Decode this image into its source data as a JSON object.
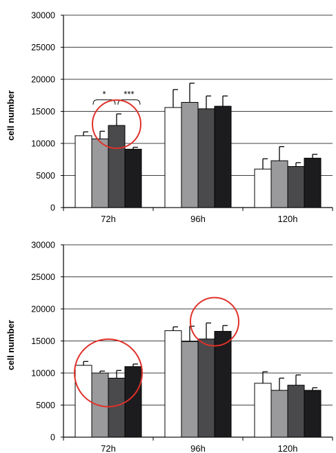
{
  "colors": {
    "series": [
      "#ffffff",
      "#9a9a9c",
      "#4a4a4c",
      "#1c1c1e"
    ],
    "bar_stroke": "#000000",
    "grid": "#000000",
    "highlight_circle": "#e0302a"
  },
  "chart_data": [
    {
      "type": "bar",
      "title": "",
      "xlabel": "",
      "ylabel": "cell number",
      "ylim": [
        0,
        30000
      ],
      "yticks": [
        0,
        5000,
        10000,
        15000,
        20000,
        25000,
        30000
      ],
      "ytick_labels": [
        "0",
        "5000",
        "10000",
        "15000",
        "20000",
        "25000",
        "30000"
      ],
      "grid": true,
      "legend": "none",
      "categories": [
        "72h",
        "96h",
        "120h"
      ],
      "series": [
        {
          "values": [
            11200,
            15600,
            6000
          ],
          "errors": [
            600,
            2800,
            1600
          ]
        },
        {
          "values": [
            10700,
            16400,
            7300
          ],
          "errors": [
            1200,
            3000,
            2200
          ]
        },
        {
          "values": [
            12800,
            15400,
            6400
          ],
          "errors": [
            1800,
            2000,
            600
          ]
        },
        {
          "values": [
            9100,
            15800,
            7700
          ],
          "errors": [
            300,
            1600,
            600
          ]
        }
      ],
      "annotations": [
        {
          "text": "*",
          "category": "72h",
          "between_series": [
            1,
            2
          ]
        },
        {
          "text": "***",
          "category": "72h",
          "between_series": [
            2,
            3
          ]
        }
      ],
      "highlight_circles": [
        {
          "category": "72h",
          "series": [
            2
          ],
          "center_value": 13000
        }
      ]
    },
    {
      "type": "bar",
      "title": "",
      "xlabel": "",
      "ylabel": "cell number",
      "ylim": [
        0,
        30000
      ],
      "yticks": [
        0,
        5000,
        10000,
        15000,
        20000,
        25000,
        30000
      ],
      "ytick_labels": [
        "0",
        "5000",
        "10000",
        "15000",
        "20000",
        "25000",
        "30000"
      ],
      "grid": true,
      "legend": "none",
      "categories": [
        "72h",
        "96h",
        "120h"
      ],
      "series": [
        {
          "values": [
            11200,
            16600,
            8400
          ],
          "errors": [
            600,
            600,
            1800
          ]
        },
        {
          "values": [
            10000,
            14900,
            7300
          ],
          "errors": [
            300,
            2400,
            1900
          ]
        },
        {
          "values": [
            9200,
            15300,
            8100
          ],
          "errors": [
            1200,
            2500,
            1600
          ]
        },
        {
          "values": [
            11000,
            16500,
            7300
          ],
          "errors": [
            400,
            900,
            400
          ]
        }
      ],
      "annotations": [],
      "highlight_circles": [
        {
          "category": "72h",
          "series": [
            0,
            1,
            2,
            3
          ],
          "center_value": 11300
        },
        {
          "category": "96h",
          "series": [
            2,
            3
          ],
          "center_value": 18000
        }
      ]
    }
  ]
}
